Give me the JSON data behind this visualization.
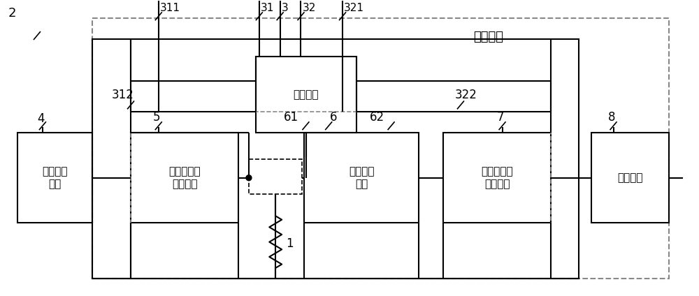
{
  "bg_color": "#ffffff",
  "line_color": "#000000",
  "dash_color": "#888888",
  "label_2": "2",
  "label_1": "1",
  "label_3": "3",
  "label_31": "31",
  "label_32": "32",
  "label_311": "311",
  "label_321": "321",
  "label_312": "312",
  "label_322": "322",
  "label_4": "4",
  "label_5": "5",
  "label_6": "6",
  "label_61": "61",
  "label_62": "62",
  "label_7": "7",
  "label_8": "8",
  "box_geli": "隔离电源",
  "box_jizun": "基准电源\n电路",
  "box_di1": "第一电流源\n发生电路",
  "box_guangou": "光耦隔离\n电路",
  "box_di2": "第二电流源\n发生电路",
  "box_cayang": "采样电路",
  "label_celiangdianlu": "测量电路",
  "figsize": [
    10.0,
    4.24
  ],
  "dpi": 100
}
